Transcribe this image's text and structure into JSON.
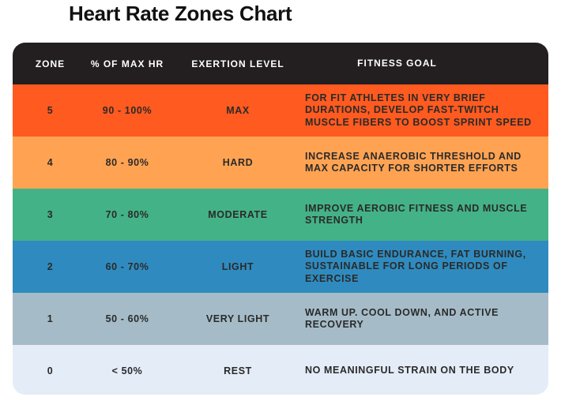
{
  "title": "Heart Rate Zones Chart",
  "headers": {
    "zone": "ZONE",
    "pct": "% OF MAX HR",
    "exertion": "EXERTION LEVEL",
    "goal": "FITNESS GOAL"
  },
  "colors": {
    "header": "#231f20",
    "zone5": "#ff5a1f",
    "zone4": "#ffa353",
    "zone3": "#44b287",
    "zone2": "#2f8bbf",
    "zone1": "#a5bcc8",
    "zone0": "#e4ecf7"
  },
  "rows": [
    {
      "zone": "5",
      "pct": "90 - 100%",
      "exertion": "MAX",
      "goal": "FOR FIT ATHLETES IN VERY BRIEF DURATIONS, DEVELOP FAST-TWITCH MUSCLE FIBERS TO BOOST SPRINT SPEED"
    },
    {
      "zone": "4",
      "pct": "80 - 90%",
      "exertion": "HARD",
      "goal": "INCREASE ANAEROBIC THRESHOLD AND MAX CAPACITY FOR SHORTER EFFORTS"
    },
    {
      "zone": "3",
      "pct": "70 - 80%",
      "exertion": "MODERATE",
      "goal": "IMPROVE AEROBIC FITNESS AND MUSCLE STRENGTH"
    },
    {
      "zone": "2",
      "pct": "60 - 70%",
      "exertion": "LIGHT",
      "goal": "BUILD BASIC ENDURANCE, FAT BURNING, SUSTAINABLE FOR LONG PERIODS OF EXERCISE"
    },
    {
      "zone": "1",
      "pct": "50 - 60%",
      "exertion": "VERY LIGHT",
      "goal": "WARM UP. COOL DOWN, AND ACTIVE RECOVERY"
    },
    {
      "zone": "0",
      "pct": "< 50%",
      "exertion": "REST",
      "goal": "NO MEANINGFUL STRAIN ON THE BODY"
    }
  ]
}
